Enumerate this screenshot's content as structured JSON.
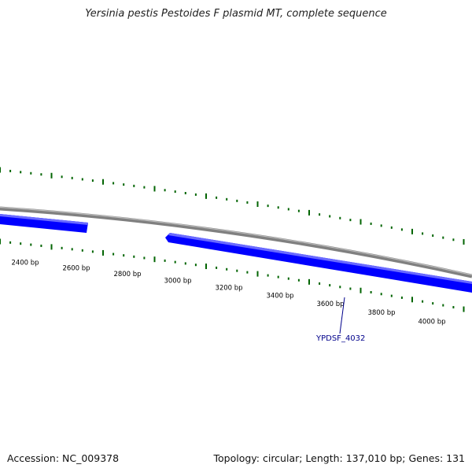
{
  "title": "Yersinia pestis Pestoides F plasmid MT, complete sequence",
  "footer": {
    "accession": "Accession: NC_009378",
    "summary": "Topology: circular; Length: 137,010 bp; Genes: 131"
  },
  "ruler": {
    "labels": [
      "2400 bp",
      "2600 bp",
      "2800 bp",
      "3000 bp",
      "3200 bp",
      "3400 bp",
      "3600 bp",
      "3800 bp",
      "4000 bp"
    ]
  },
  "genes": [
    {
      "label": "YPDSF_4032"
    }
  ],
  "colors": {
    "backbone": "#808080",
    "gene_fill": "#0000ff",
    "gene_highlight": "#6666ff",
    "tick": "#006400",
    "gene_label": "#00008b"
  }
}
